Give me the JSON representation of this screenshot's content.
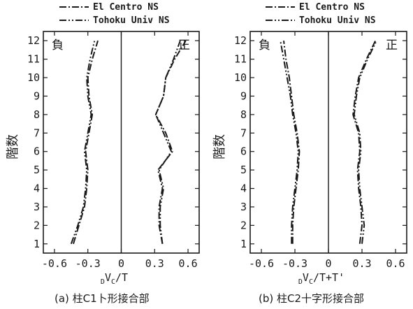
{
  "legend": {
    "items": [
      {
        "label": "El Centro NS",
        "dash": "10 3 2 3"
      },
      {
        "label": "Tohoku Univ NS",
        "dash": "10 3 2 3 2 3"
      }
    ]
  },
  "y_axis_label": "階数",
  "side_labels": {
    "negative": "負",
    "positive": "正"
  },
  "chart_data": [
    {
      "type": "line",
      "panel": "a",
      "caption": "(a) 柱C1卜形接合部",
      "xlabel": {
        "sub_left": "D",
        "main": "V",
        "sub": "C",
        "rest": "/T"
      },
      "xlim": [
        -0.7,
        0.7
      ],
      "ylim": [
        0.5,
        12.5
      ],
      "xticks": [
        "-0.6",
        "-0.3",
        "0",
        "0.3",
        "0.6"
      ],
      "xtick_values": [
        -0.6,
        -0.3,
        0,
        0.3,
        0.6
      ],
      "yticks": [
        "1",
        "2",
        "3",
        "4",
        "5",
        "6",
        "7",
        "8",
        "9",
        "10",
        "11",
        "12"
      ],
      "floors": [
        1,
        2,
        3,
        4,
        5,
        6,
        7,
        8,
        9,
        10,
        11,
        12
      ],
      "series": [
        {
          "name": "El Centro NS",
          "side": "negative",
          "values": [
            -0.43,
            -0.38,
            -0.33,
            -0.31,
            -0.3,
            -0.32,
            -0.29,
            -0.26,
            -0.29,
            -0.3,
            -0.26,
            -0.21
          ]
        },
        {
          "name": "Tohoku Univ NS",
          "side": "negative",
          "values": [
            -0.45,
            -0.39,
            -0.34,
            -0.32,
            -0.31,
            -0.33,
            -0.3,
            -0.27,
            -0.3,
            -0.31,
            -0.28,
            -0.24
          ]
        },
        {
          "name": "El Centro NS",
          "side": "positive",
          "values": [
            0.37,
            0.34,
            0.34,
            0.37,
            0.33,
            0.46,
            0.4,
            0.31,
            0.38,
            0.4,
            0.48,
            0.58
          ]
        },
        {
          "name": "Tohoku Univ NS",
          "side": "positive",
          "values": [
            0.37,
            0.35,
            0.35,
            0.38,
            0.34,
            0.45,
            0.38,
            0.31,
            0.38,
            0.4,
            0.47,
            0.53
          ]
        }
      ]
    },
    {
      "type": "line",
      "panel": "b",
      "caption": "(b) 柱C2十字形接合部",
      "xlabel": {
        "sub_left": "D",
        "main": "V",
        "sub": "C",
        "rest": "/T+T'"
      },
      "xlim": [
        -0.7,
        0.7
      ],
      "ylim": [
        0.5,
        12.5
      ],
      "xticks": [
        "-0.6",
        "-0.3",
        "0",
        "0.3",
        "0.6"
      ],
      "xtick_values": [
        -0.6,
        -0.3,
        0,
        0.3,
        0.6
      ],
      "yticks": [
        "1",
        "2",
        "3",
        "4",
        "5",
        "6",
        "7",
        "8",
        "9",
        "10",
        "11",
        "12"
      ],
      "floors": [
        1,
        2,
        3,
        4,
        5,
        6,
        7,
        8,
        9,
        10,
        11,
        12
      ],
      "series": [
        {
          "name": "El Centro NS",
          "side": "negative",
          "values": [
            -0.32,
            -0.32,
            -0.31,
            -0.29,
            -0.27,
            -0.26,
            -0.28,
            -0.31,
            -0.33,
            -0.35,
            -0.38,
            -0.4
          ]
        },
        {
          "name": "Tohoku Univ NS",
          "side": "negative",
          "values": [
            -0.33,
            -0.33,
            -0.32,
            -0.3,
            -0.28,
            -0.27,
            -0.29,
            -0.32,
            -0.34,
            -0.37,
            -0.4,
            -0.43
          ]
        },
        {
          "name": "El Centro NS",
          "side": "positive",
          "values": [
            0.28,
            0.3,
            0.29,
            0.27,
            0.26,
            0.28,
            0.27,
            0.22,
            0.24,
            0.27,
            0.34,
            0.42
          ]
        },
        {
          "name": "Tohoku Univ NS",
          "side": "positive",
          "values": [
            0.3,
            0.32,
            0.3,
            0.28,
            0.27,
            0.29,
            0.28,
            0.23,
            0.25,
            0.28,
            0.35,
            0.43
          ]
        }
      ]
    }
  ]
}
